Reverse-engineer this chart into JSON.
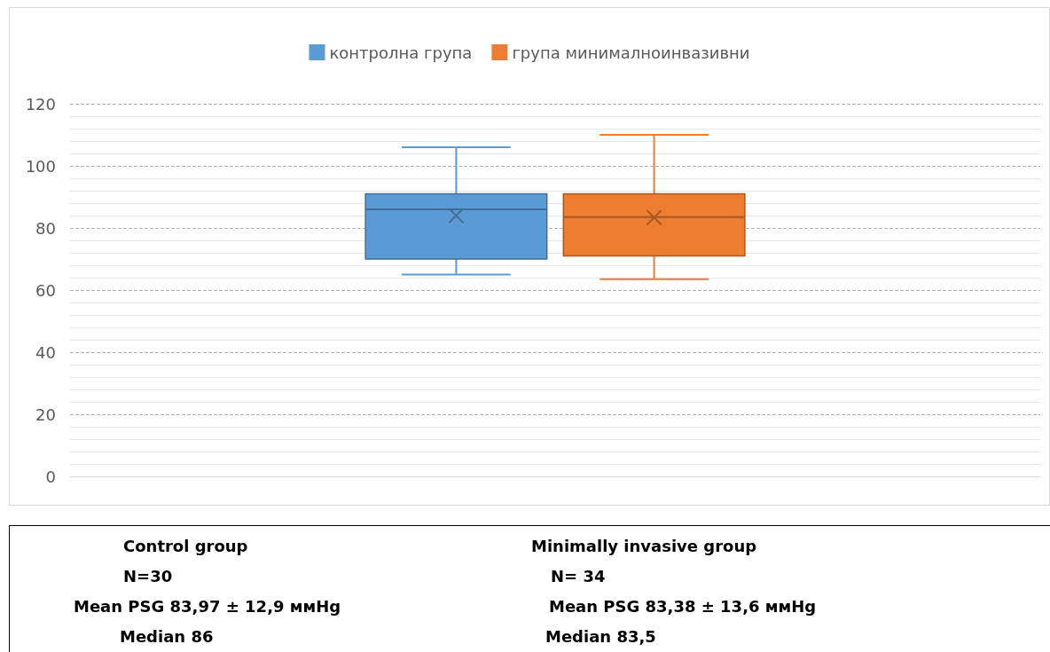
{
  "chart_data": {
    "type": "box",
    "categories": [
      null
    ],
    "series": [
      {
        "name": "контролна група",
        "color": "#5b9bd5",
        "boxes": [
          {
            "low": 65,
            "q1": 70,
            "median": 86,
            "q3": 91,
            "high": 106,
            "mean": 83.97
          }
        ]
      },
      {
        "name": "група минималноинвазивни",
        "color": "#ed7d31",
        "boxes": [
          {
            "low": 63.5,
            "q1": 71,
            "median": 83.5,
            "q3": 91,
            "high": 110,
            "mean": 83.38
          }
        ]
      }
    ],
    "ylim": [
      0,
      120
    ],
    "yticks": [
      0,
      20,
      40,
      60,
      80,
      100,
      120
    ],
    "grid": "y",
    "legend": "top",
    "annotations": [
      "Control group",
      "Minimally invasive group",
      "N=30",
      "N= 34",
      "Mean PSG 83,97 ± 12,9 ммHg",
      "Mean PSG 83,38 ± 13,6 ммHg",
      "Median 86",
      "Median 83,5"
    ]
  }
}
